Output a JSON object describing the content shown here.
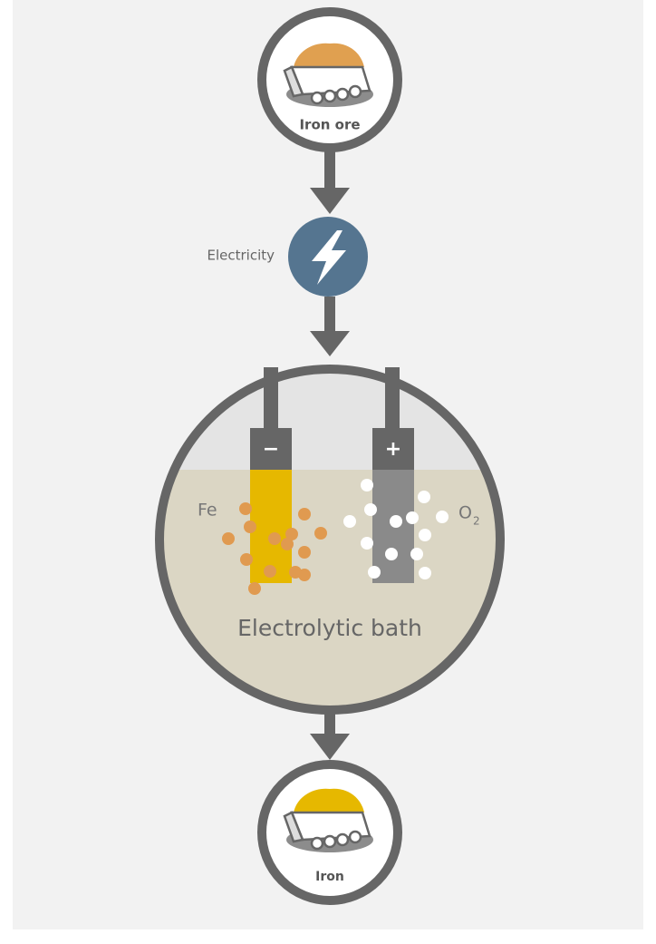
{
  "input": {
    "label": "Iron ore"
  },
  "energy": {
    "label": "Electricity"
  },
  "bath": {
    "label": "Electrolytic bath",
    "cathode": {
      "sign": "−",
      "product": "Fe"
    },
    "anode": {
      "sign": "+",
      "product": {
        "label": "O",
        "subscript": "2"
      }
    }
  },
  "output": {
    "label": "Iron"
  }
}
